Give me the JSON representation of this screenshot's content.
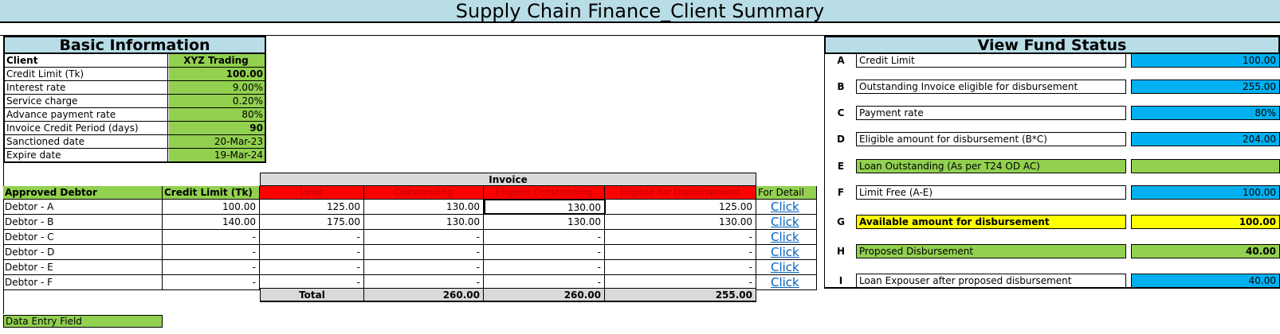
{
  "title": "Supply Chain Finance_Client Summary",
  "basic_info": {
    "heading": "Basic Information",
    "rows": [
      {
        "label": "Client",
        "value": "XYZ Trading"
      },
      {
        "label": "Credit Limit (Tk)",
        "value": "100.00"
      },
      {
        "label": "Interest rate",
        "value": "9.00%"
      },
      {
        "label": "Service charge",
        "value": "0.20%"
      },
      {
        "label": "Advance payment rate",
        "value": "80%"
      },
      {
        "label": "Invoice Credit Period (days)",
        "value": "90"
      },
      {
        "label": "Sanctioned date",
        "value": "20-Mar-23"
      },
      {
        "label": "Expire date",
        "value": "19-Mar-24"
      }
    ]
  },
  "debtor_table": {
    "group_header": "Invoice",
    "headers": {
      "debtor": "Approved Debtor",
      "credit_limit": "Credit Limit (Tk)",
      "limit": "Limit",
      "outstanding": "Outstanding",
      "eligible_outstanding": "Eligible Outstanding",
      "eligible_disbursement": "Eligible for Disbursement",
      "detail": "For Detail"
    },
    "rows": [
      {
        "debtor": "Debtor - A",
        "credit_limit": "100.00",
        "limit": "125.00",
        "outstanding": "130.00",
        "eligible_outstanding": "130.00",
        "eligible_disbursement": "125.00",
        "detail": "Click"
      },
      {
        "debtor": "Debtor - B",
        "credit_limit": "140.00",
        "limit": "175.00",
        "outstanding": "130.00",
        "eligible_outstanding": "130.00",
        "eligible_disbursement": "130.00",
        "detail": "Click"
      },
      {
        "debtor": "Debtor - C",
        "credit_limit": "-",
        "limit": "-",
        "outstanding": "-",
        "eligible_outstanding": "-",
        "eligible_disbursement": "-",
        "detail": "Click"
      },
      {
        "debtor": "Debtor - D",
        "credit_limit": "-",
        "limit": "-",
        "outstanding": "-",
        "eligible_outstanding": "-",
        "eligible_disbursement": "-",
        "detail": "Click"
      },
      {
        "debtor": "Debtor - E",
        "credit_limit": "-",
        "limit": "-",
        "outstanding": "-",
        "eligible_outstanding": "-",
        "eligible_disbursement": "-",
        "detail": "Click"
      },
      {
        "debtor": "Debtor - F",
        "credit_limit": "-",
        "limit": "-",
        "outstanding": "-",
        "eligible_outstanding": "-",
        "eligible_disbursement": "-",
        "detail": "Click"
      }
    ],
    "total": {
      "label": "Total",
      "outstanding": "260.00",
      "eligible_outstanding": "260.00",
      "eligible_disbursement": "255.00"
    }
  },
  "fund_status": {
    "heading": "View Fund Status",
    "rows": [
      {
        "letter": "A",
        "label": "Credit Limit",
        "value": "100.00",
        "style": "blue"
      },
      {
        "letter": "B",
        "label": "Outstanding Invoice eligible for disbursement",
        "value": "255.00",
        "style": "blue"
      },
      {
        "letter": "C",
        "label": "Payment rate",
        "value": "80%",
        "style": "blue"
      },
      {
        "letter": "D",
        "label": "Eligible amount for disbursement (B*C)",
        "value": "204.00",
        "style": "blue"
      },
      {
        "letter": "E",
        "label": "Loan Outstanding (As per T24 OD AC)",
        "value": "",
        "style": "green"
      },
      {
        "letter": "F",
        "label": "Limit Free (A-E)",
        "value": "100.00",
        "style": "blue"
      },
      {
        "letter": "G",
        "label": "Available amount for disbursement",
        "value": "100.00",
        "style": "yellow"
      },
      {
        "letter": "H",
        "label": "Proposed Disbursement",
        "value": "40.00",
        "style": "green"
      },
      {
        "letter": "I",
        "label": "Loan Expouser after proposed disbursement",
        "value": "40.00",
        "style": "blue"
      }
    ]
  },
  "legend": "Data Entry Field",
  "colors": {
    "header_blue": "#b9dde7",
    "entry_green": "#92d050",
    "calc_blue": "#00b0f0",
    "highlight_yellow": "#ffff00",
    "header_red": "#ff0000",
    "link": "#0563c1"
  }
}
